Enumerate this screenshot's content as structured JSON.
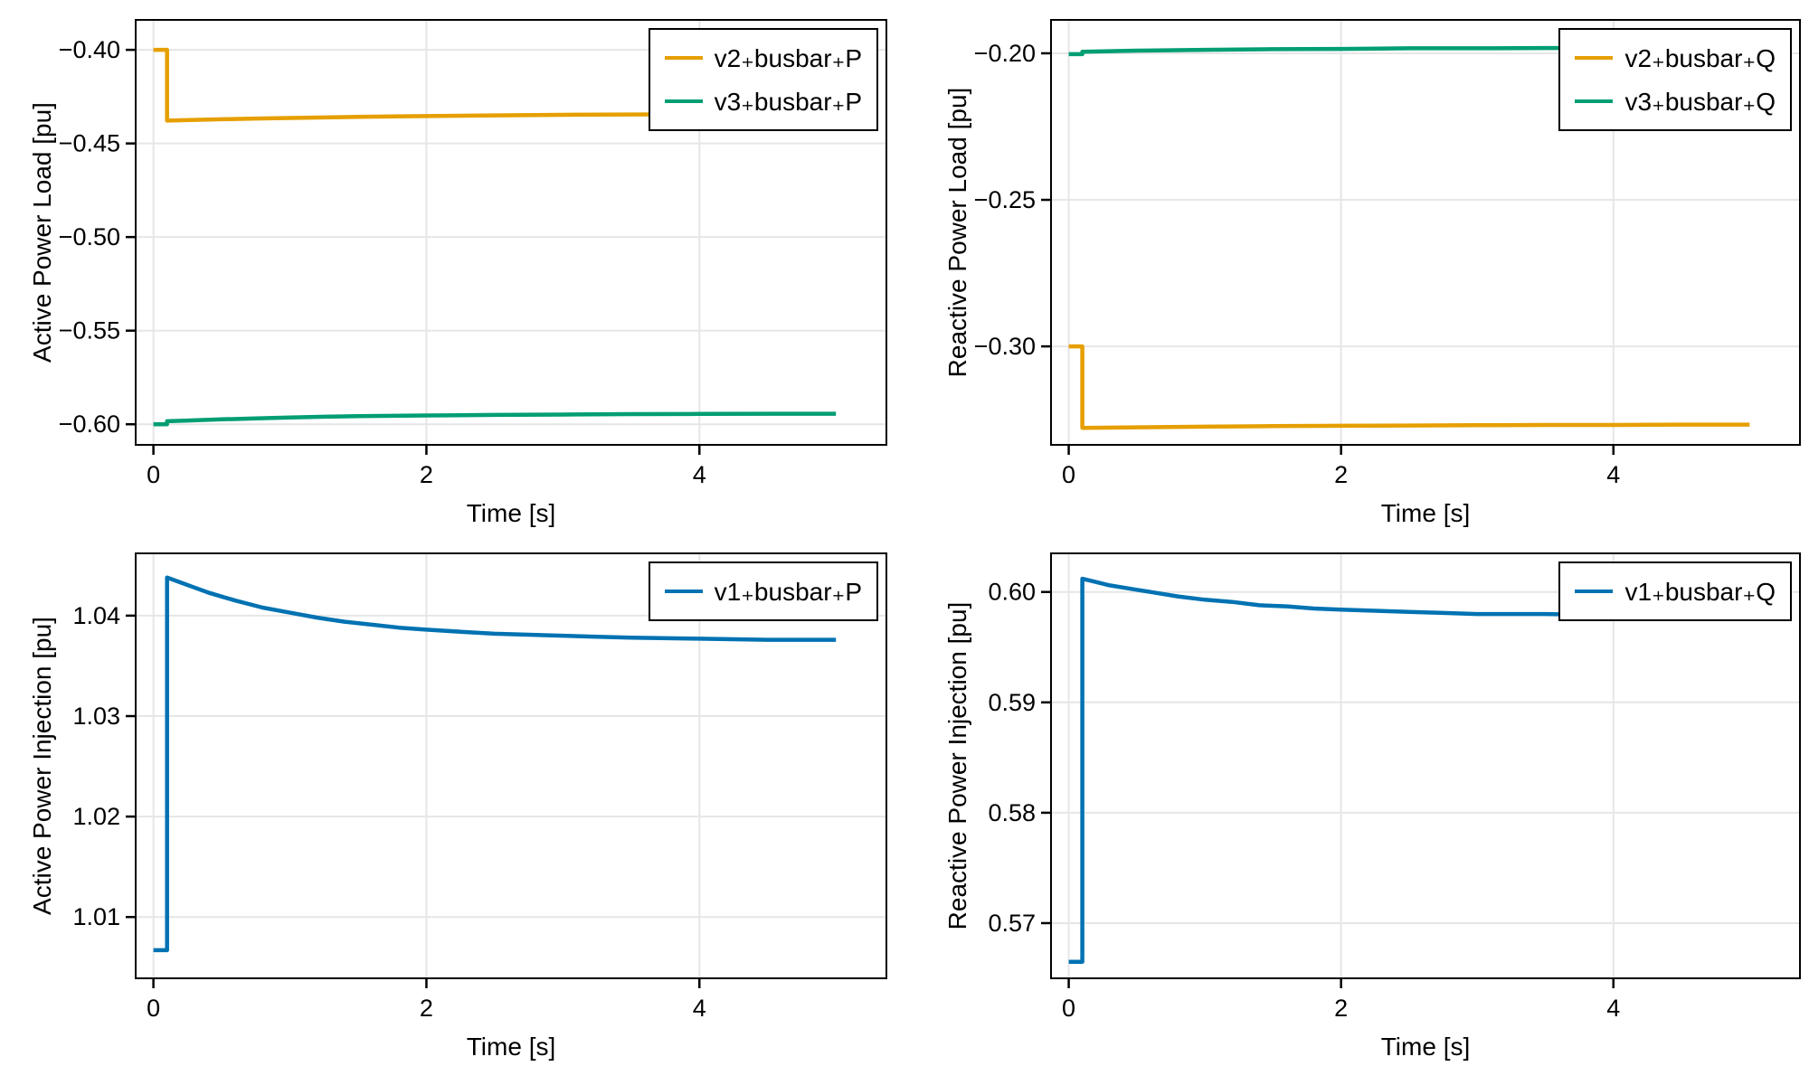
{
  "chart_data": [
    {
      "type": "line",
      "title": "",
      "xlabel": "Time [s]",
      "ylabel": "Active Power Load [pu]",
      "xlim": [
        -0.13,
        5.37
      ],
      "ylim": [
        -0.611,
        -0.384
      ],
      "xticks": [
        0,
        2,
        4
      ],
      "xtick_labels": [
        "0",
        "2",
        "4"
      ],
      "yticks": [
        -0.4,
        -0.45,
        -0.5,
        -0.55,
        -0.6
      ],
      "ytick_labels": [
        "−0.40",
        "−0.45",
        "−0.50",
        "−0.55",
        "−0.60"
      ],
      "grid": true,
      "legend_position": "top-right",
      "series": [
        {
          "name": "v2₊busbar₊P",
          "color": "#E69F00",
          "points": [
            [
              0,
              -0.4
            ],
            [
              0.1,
              -0.4
            ],
            [
              0.1,
              -0.4378
            ],
            [
              0.3,
              -0.4374
            ],
            [
              0.5,
              -0.4371
            ],
            [
              0.75,
              -0.4367
            ],
            [
              1,
              -0.4364
            ],
            [
              1.25,
              -0.4361
            ],
            [
              1.5,
              -0.4358
            ],
            [
              1.75,
              -0.4356
            ],
            [
              2,
              -0.4354
            ],
            [
              2.5,
              -0.435
            ],
            [
              3,
              -0.4347
            ],
            [
              3.5,
              -0.4345
            ],
            [
              4,
              -0.4344
            ],
            [
              4.5,
              -0.4343
            ],
            [
              5,
              -0.4342
            ]
          ]
        },
        {
          "name": "v3₊busbar₊P",
          "color": "#009E73",
          "points": [
            [
              0,
              -0.6
            ],
            [
              0.1,
              -0.6
            ],
            [
              0.1,
              -0.5984
            ],
            [
              0.25,
              -0.598
            ],
            [
              0.5,
              -0.5974
            ],
            [
              0.75,
              -0.5969
            ],
            [
              1,
              -0.5964
            ],
            [
              1.25,
              -0.596
            ],
            [
              1.5,
              -0.5957
            ],
            [
              1.75,
              -0.5955
            ],
            [
              2,
              -0.5953
            ],
            [
              2.5,
              -0.595
            ],
            [
              3,
              -0.5948
            ],
            [
              3.5,
              -0.5946
            ],
            [
              4,
              -0.5945
            ],
            [
              4.5,
              -0.5944
            ],
            [
              5,
              -0.5944
            ]
          ]
        }
      ]
    },
    {
      "type": "line",
      "title": "",
      "xlabel": "Time [s]",
      "ylabel": "Reactive Power Load [pu]",
      "xlim": [
        -0.13,
        5.37
      ],
      "ylim": [
        -0.3336,
        -0.1886
      ],
      "xticks": [
        0,
        2,
        4
      ],
      "xtick_labels": [
        "0",
        "2",
        "4"
      ],
      "yticks": [
        -0.2,
        -0.25,
        -0.3
      ],
      "ytick_labels": [
        "−0.20",
        "−0.25",
        "−0.30"
      ],
      "grid": true,
      "legend_position": "top-right",
      "series": [
        {
          "name": "v2₊busbar₊Q",
          "color": "#E69F00",
          "points": [
            [
              0,
              -0.3
            ],
            [
              0.1,
              -0.3
            ],
            [
              0.1,
              -0.3278
            ],
            [
              0.5,
              -0.3276
            ],
            [
              1,
              -0.3274
            ],
            [
              1.5,
              -0.3272
            ],
            [
              2,
              -0.3271
            ],
            [
              2.5,
              -0.327
            ],
            [
              3,
              -0.3269
            ],
            [
              3.5,
              -0.3268
            ],
            [
              4,
              -0.3268
            ],
            [
              4.5,
              -0.3267
            ],
            [
              5,
              -0.3267
            ]
          ]
        },
        {
          "name": "v3₊busbar₊Q",
          "color": "#009E73",
          "points": [
            [
              0,
              -0.2003
            ],
            [
              0.1,
              -0.2003
            ],
            [
              0.1,
              -0.1995
            ],
            [
              0.5,
              -0.1991
            ],
            [
              1,
              -0.1988
            ],
            [
              1.5,
              -0.1986
            ],
            [
              2,
              -0.1985
            ],
            [
              2.5,
              -0.1983
            ],
            [
              3,
              -0.1983
            ],
            [
              3.5,
              -0.1982
            ],
            [
              4,
              -0.1982
            ],
            [
              4.5,
              -0.1981
            ],
            [
              5,
              -0.1981
            ]
          ]
        }
      ]
    },
    {
      "type": "line",
      "title": "",
      "xlabel": "Time [s]",
      "ylabel": "Active Power Injection [pu]",
      "xlim": [
        -0.13,
        5.37
      ],
      "ylim": [
        1.0039,
        1.0462
      ],
      "xticks": [
        0,
        2,
        4
      ],
      "xtick_labels": [
        "0",
        "2",
        "4"
      ],
      "yticks": [
        1.01,
        1.02,
        1.03,
        1.04
      ],
      "ytick_labels": [
        "1.01",
        "1.02",
        "1.03",
        "1.04"
      ],
      "grid": true,
      "legend_position": "top-right",
      "series": [
        {
          "name": "v1₊busbar₊P",
          "color": "#0072B2",
          "points": [
            [
              0,
              1.0067
            ],
            [
              0.1,
              1.0067
            ],
            [
              0.1,
              1.0438
            ],
            [
              0.2,
              1.0433
            ],
            [
              0.3,
              1.0428
            ],
            [
              0.4,
              1.0423
            ],
            [
              0.5,
              1.0419
            ],
            [
              0.6,
              1.0415
            ],
            [
              0.8,
              1.0408
            ],
            [
              1,
              1.0403
            ],
            [
              1.2,
              1.0398
            ],
            [
              1.4,
              1.0394
            ],
            [
              1.6,
              1.0391
            ],
            [
              1.8,
              1.0388
            ],
            [
              2,
              1.0386
            ],
            [
              2.25,
              1.0384
            ],
            [
              2.5,
              1.0382
            ],
            [
              2.75,
              1.0381
            ],
            [
              3,
              1.038
            ],
            [
              3.25,
              1.0379
            ],
            [
              3.5,
              1.0378
            ],
            [
              4,
              1.0377
            ],
            [
              4.5,
              1.0376
            ],
            [
              5,
              1.0376
            ]
          ]
        }
      ]
    },
    {
      "type": "line",
      "title": "",
      "xlabel": "Time [s]",
      "ylabel": "Reactive Power Injection [pu]",
      "xlim": [
        -0.13,
        5.37
      ],
      "ylim": [
        0.565,
        0.6035
      ],
      "xticks": [
        0,
        2,
        4
      ],
      "xtick_labels": [
        "0",
        "2",
        "4"
      ],
      "yticks": [
        0.57,
        0.58,
        0.59,
        0.6
      ],
      "ytick_labels": [
        "0.57",
        "0.58",
        "0.59",
        "0.60"
      ],
      "grid": true,
      "legend_position": "top-right",
      "series": [
        {
          "name": "v1₊busbar₊Q",
          "color": "#0072B2",
          "points": [
            [
              0,
              0.5665
            ],
            [
              0.1,
              0.5665
            ],
            [
              0.1,
              0.6012
            ],
            [
              0.2,
              0.6009
            ],
            [
              0.3,
              0.6006
            ],
            [
              0.4,
              0.6004
            ],
            [
              0.5,
              0.6002
            ],
            [
              0.6,
              0.6
            ],
            [
              0.8,
              0.5996
            ],
            [
              1,
              0.5993
            ],
            [
              1.2,
              0.5991
            ],
            [
              1.4,
              0.5988
            ],
            [
              1.6,
              0.5987
            ],
            [
              1.8,
              0.5985
            ],
            [
              2,
              0.5984
            ],
            [
              2.25,
              0.5983
            ],
            [
              2.5,
              0.5982
            ],
            [
              2.75,
              0.5981
            ],
            [
              3,
              0.598
            ],
            [
              3.5,
              0.598
            ],
            [
              4,
              0.5979
            ],
            [
              4.5,
              0.5979
            ],
            [
              5,
              0.5978
            ]
          ]
        }
      ]
    }
  ],
  "style_colors": {
    "grid": "#E6E6E6",
    "spine": "#000000",
    "text": "#000000",
    "plot_background": "#FFFFFF"
  }
}
